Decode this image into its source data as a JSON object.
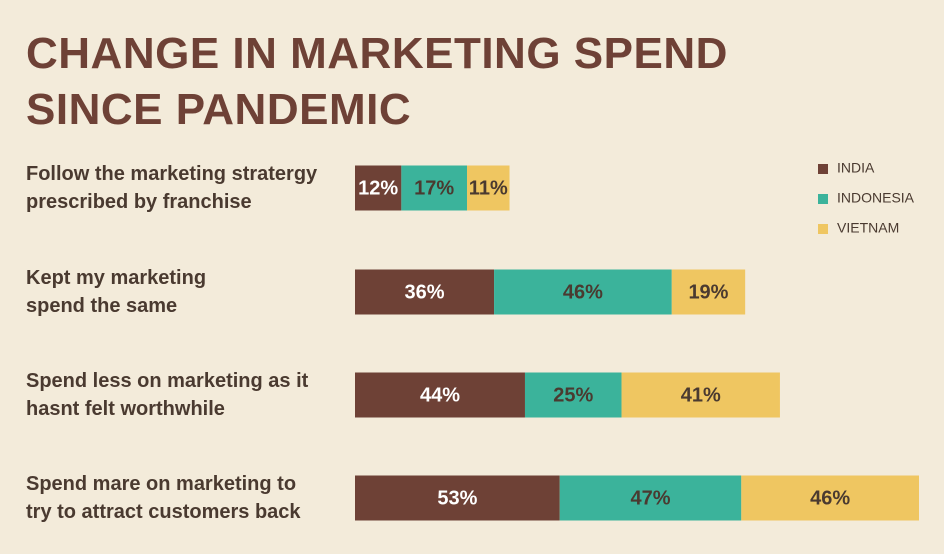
{
  "chart_data": {
    "type": "stacked-bar-horizontal",
    "title": "CHANGE IN MARKETING SPEND\nSINCE PANDEMIC",
    "categories": [
      "Follow the marketing stratergy\nprescribed by franchise",
      "Kept my marketing\nspend the same",
      "Spend less on marketing as it\nhasnt felt worthwhile",
      "Spend mare on marketing to\ntry to attract customers back"
    ],
    "series": [
      {
        "name": "INDIA",
        "color": "#6e4136",
        "values": [
          12,
          36,
          44,
          53
        ],
        "value_labels": [
          "12%",
          "36%",
          "44%",
          "53%"
        ]
      },
      {
        "name": "INDONESIA",
        "color": "#3bb39b",
        "values": [
          17,
          46,
          25,
          47
        ],
        "value_labels": [
          "17%",
          "46%",
          "25%",
          "47%"
        ]
      },
      {
        "name": "VIETNAM",
        "color": "#efc661",
        "values": [
          11,
          19,
          41,
          46
        ],
        "value_labels": [
          "11%",
          "19%",
          "41%",
          "46%"
        ]
      }
    ],
    "legend": "top-right"
  }
}
